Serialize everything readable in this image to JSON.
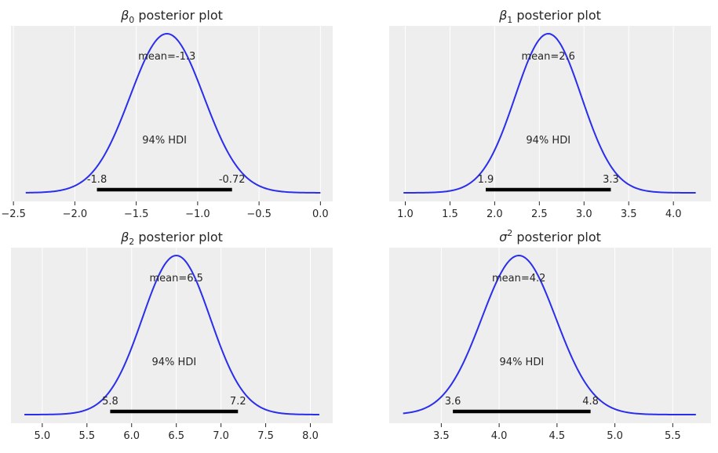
{
  "chart_data": [
    {
      "type": "area",
      "title_symbol": "β",
      "title_sub": "0",
      "title_sup": "",
      "title_rest": " posterior plot",
      "mean": -1.25,
      "sd": 0.3,
      "x_range": [
        -2.4,
        0.0
      ],
      "xlim": [
        -2.52,
        0.1
      ],
      "xticks": [
        -2.5,
        -2.0,
        -1.5,
        -1.0,
        -0.5,
        0.0
      ],
      "xtick_labels": [
        "−2.5",
        "−2.0",
        "−1.5",
        "−1.0",
        "−0.5",
        "0.0"
      ],
      "mean_label": "mean=-1.3",
      "hdi_label": "94% HDI",
      "hdi": [
        -1.82,
        -0.72
      ],
      "hdi_low_label": "-1.8",
      "hdi_high_label": "-0.72",
      "grid": true
    },
    {
      "type": "area",
      "title_symbol": "β",
      "title_sub": "1",
      "title_sup": "",
      "title_rest": " posterior plot",
      "mean": 2.6,
      "sd": 0.37,
      "x_range": [
        0.98,
        4.25
      ],
      "xlim": [
        0.82,
        4.42
      ],
      "xticks": [
        1.0,
        1.5,
        2.0,
        2.5,
        3.0,
        3.5,
        4.0
      ],
      "xtick_labels": [
        "1.0",
        "1.5",
        "2.0",
        "2.5",
        "3.0",
        "3.5",
        "4.0"
      ],
      "mean_label": "mean=2.6",
      "hdi_label": "94% HDI",
      "hdi": [
        1.9,
        3.3
      ],
      "hdi_low_label": "1.9",
      "hdi_high_label": "3.3",
      "grid": true
    },
    {
      "type": "area",
      "title_symbol": "β",
      "title_sub": "2",
      "title_sup": "",
      "title_rest": " posterior plot",
      "mean": 6.5,
      "sd": 0.38,
      "x_range": [
        4.8,
        8.1
      ],
      "xlim": [
        4.65,
        8.25
      ],
      "xticks": [
        5.0,
        5.5,
        6.0,
        6.5,
        7.0,
        7.5,
        8.0
      ],
      "xtick_labels": [
        "5.0",
        "5.5",
        "6.0",
        "6.5",
        "7.0",
        "7.5",
        "8.0"
      ],
      "mean_label": "mean=6.5",
      "hdi_label": "94% HDI",
      "hdi": [
        5.76,
        7.19
      ],
      "hdi_low_label": "5.8",
      "hdi_high_label": "7.2",
      "grid": true
    },
    {
      "type": "area",
      "title_symbol": "σ",
      "title_sub": "",
      "title_sup": "2",
      "title_rest": " posterior plot",
      "mean": 4.17,
      "sd": 0.32,
      "x_range": [
        3.17,
        5.7
      ],
      "xlim": [
        3.05,
        5.83
      ],
      "xticks": [
        3.5,
        4.0,
        4.5,
        5.0,
        5.5
      ],
      "xtick_labels": [
        "3.5",
        "4.0",
        "4.5",
        "5.0",
        "5.5"
      ],
      "mean_label": "mean=4.2",
      "hdi_label": "94% HDI",
      "hdi": [
        3.6,
        4.79
      ],
      "hdi_low_label": "3.6",
      "hdi_high_label": "4.8",
      "grid": true
    }
  ],
  "colors": {
    "curve": "#2a2eec",
    "panel_bg": "#eeeeee",
    "grid": "#ffffff",
    "hdi_bar": "#000000",
    "text": "#262626"
  }
}
